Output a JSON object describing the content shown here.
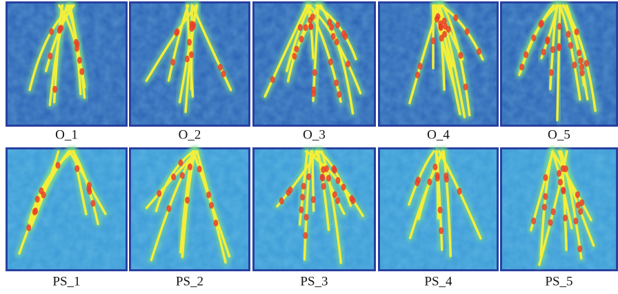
{
  "panels": {
    "rows": [
      [
        "O_1",
        "O_2",
        "O_3",
        "O_4",
        "O_5"
      ],
      [
        "PS_1",
        "PS_2",
        "PS_3",
        "PS_4",
        "PS_5"
      ]
    ]
  }
}
